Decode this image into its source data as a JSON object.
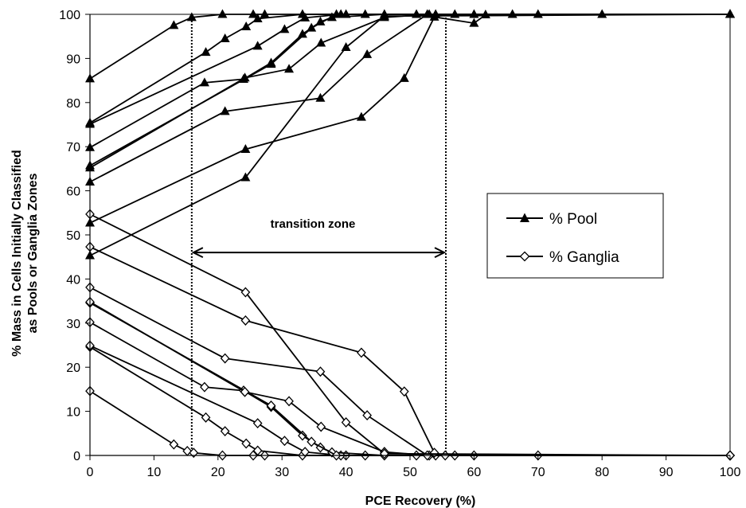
{
  "chart_data": {
    "type": "line",
    "title": "",
    "xlabel": "PCE Recovery (%)",
    "ylabel": "% Mass in Cells Initially Classified as Pools or Ganglia Zones",
    "ylabel_lines": [
      "% Mass in Cells Initially Classified",
      "as Pools or Ganglia Zones"
    ],
    "xlim": [
      0,
      100
    ],
    "ylim": [
      0,
      100
    ],
    "xticks": [
      "0",
      "10",
      "20",
      "30",
      "40",
      "50",
      "60",
      "70",
      "80",
      "90",
      "100"
    ],
    "yticks": [
      "0",
      "10",
      "20",
      "30",
      "40",
      "50",
      "60",
      "70",
      "80",
      "90",
      "100"
    ],
    "grid": false,
    "legend_position": "right",
    "annotation": {
      "text": "transition zone",
      "x_start": 15.9,
      "x_end": 55.6,
      "y": 46
    },
    "series": [
      {
        "name": "% Pool",
        "marker": "triangle",
        "color": "#000000",
        "lines": [
          [
            [
              0,
              85.4
            ],
            [
              13.1,
              97.5
            ],
            [
              15.9,
              99.3
            ],
            [
              20.7,
              100
            ],
            [
              25.5,
              100
            ],
            [
              27.3,
              100
            ],
            [
              40,
              100
            ],
            [
              60,
              100
            ],
            [
              80,
              100
            ],
            [
              100,
              100
            ]
          ],
          [
            [
              0,
              75.4
            ],
            [
              18.1,
              91.4
            ],
            [
              21.1,
              94.5
            ],
            [
              24.4,
              97.2
            ],
            [
              26.2,
              99
            ],
            [
              33.2,
              100
            ],
            [
              43,
              100
            ],
            [
              70,
              100
            ],
            [
              100,
              100
            ]
          ],
          [
            [
              0,
              75.1
            ],
            [
              26.2,
              92.8
            ],
            [
              30.4,
              96.6
            ],
            [
              33.6,
              99.2
            ],
            [
              39.2,
              100
            ],
            [
              54,
              100
            ],
            [
              100,
              100
            ]
          ],
          [
            [
              0,
              69.8
            ],
            [
              17.9,
              84.5
            ],
            [
              24,
              85.3
            ],
            [
              28.3,
              89
            ],
            [
              33.2,
              95.5
            ],
            [
              36,
              98.3
            ],
            [
              37.8,
              99.3
            ],
            [
              46,
              100
            ],
            [
              100,
              100
            ]
          ],
          [
            [
              0,
              65.7
            ],
            [
              28.3,
              88.7
            ],
            [
              34.6,
              96.9
            ],
            [
              38.5,
              100
            ],
            [
              51,
              100
            ],
            [
              100,
              100
            ]
          ],
          [
            [
              0,
              65.2
            ],
            [
              24.2,
              85.6
            ],
            [
              31.1,
              87.6
            ],
            [
              36.1,
              93.5
            ],
            [
              46,
              99.3
            ],
            [
              53,
              100
            ],
            [
              100,
              100
            ]
          ],
          [
            [
              0,
              62
            ],
            [
              21.1,
              78
            ],
            [
              36,
              81
            ],
            [
              43.3,
              90.9
            ],
            [
              52.7,
              100
            ],
            [
              57,
              100
            ],
            [
              100,
              100
            ]
          ],
          [
            [
              0,
              52.7
            ],
            [
              24.3,
              69.4
            ],
            [
              42.4,
              76.7
            ],
            [
              49.1,
              85.5
            ],
            [
              53.8,
              99.4
            ],
            [
              60,
              98
            ],
            [
              61.8,
              99.9
            ],
            [
              66,
              100
            ],
            [
              100,
              100
            ]
          ],
          [
            [
              0,
              45.3
            ],
            [
              24.3,
              63
            ],
            [
              40,
              92.5
            ],
            [
              46,
              99.6
            ],
            [
              100,
              100
            ]
          ]
        ]
      },
      {
        "name": "% Ganglia",
        "marker": "diamond",
        "color": "#000000",
        "lines": [
          [
            [
              0,
              14.6
            ],
            [
              13.1,
              2.5
            ],
            [
              15.2,
              1
            ],
            [
              16.2,
              0.6
            ],
            [
              20.7,
              0
            ],
            [
              25.5,
              0
            ],
            [
              27.3,
              0
            ],
            [
              40,
              0
            ],
            [
              60,
              0
            ],
            [
              100,
              0
            ]
          ],
          [
            [
              0,
              24.6
            ],
            [
              18.1,
              8.6
            ],
            [
              21.1,
              5.5
            ],
            [
              24.4,
              2.7
            ],
            [
              26.2,
              1.1
            ],
            [
              33.2,
              0
            ],
            [
              43,
              0
            ],
            [
              70,
              0
            ],
            [
              100,
              0
            ]
          ],
          [
            [
              0,
              24.9
            ],
            [
              26.2,
              7.3
            ],
            [
              30.4,
              3.3
            ],
            [
              33.6,
              0.8
            ],
            [
              39.2,
              0
            ],
            [
              54,
              0
            ],
            [
              100,
              0
            ]
          ],
          [
            [
              0,
              30.2
            ],
            [
              17.9,
              15.5
            ],
            [
              24,
              14.7
            ],
            [
              28.3,
              11
            ],
            [
              33.2,
              4.5
            ],
            [
              36,
              1.8
            ],
            [
              37.8,
              0.7
            ],
            [
              46,
              0
            ],
            [
              100,
              0
            ]
          ],
          [
            [
              0,
              34.6
            ],
            [
              28.3,
              11.3
            ],
            [
              34.6,
              3.1
            ],
            [
              38.5,
              0
            ],
            [
              51,
              0
            ],
            [
              100,
              0
            ]
          ],
          [
            [
              0,
              34.8
            ],
            [
              24.2,
              14.4
            ],
            [
              31.1,
              12.3
            ],
            [
              36.1,
              6.5
            ],
            [
              46,
              0.8
            ],
            [
              53,
              0
            ],
            [
              100,
              0
            ]
          ],
          [
            [
              0,
              38.1
            ],
            [
              21.1,
              22
            ],
            [
              36,
              19
            ],
            [
              43.3,
              9.1
            ],
            [
              52.7,
              0
            ],
            [
              57,
              0
            ],
            [
              100,
              0
            ]
          ],
          [
            [
              0,
              47.3
            ],
            [
              24.3,
              30.6
            ],
            [
              42.4,
              23.3
            ],
            [
              49.1,
              14.5
            ],
            [
              53.8,
              0.6
            ],
            [
              55.5,
              0
            ],
            [
              100,
              0
            ]
          ],
          [
            [
              0,
              54.7
            ],
            [
              24.3,
              37
            ],
            [
              40,
              7.5
            ],
            [
              46,
              0.4
            ],
            [
              100,
              0
            ]
          ]
        ]
      }
    ]
  }
}
